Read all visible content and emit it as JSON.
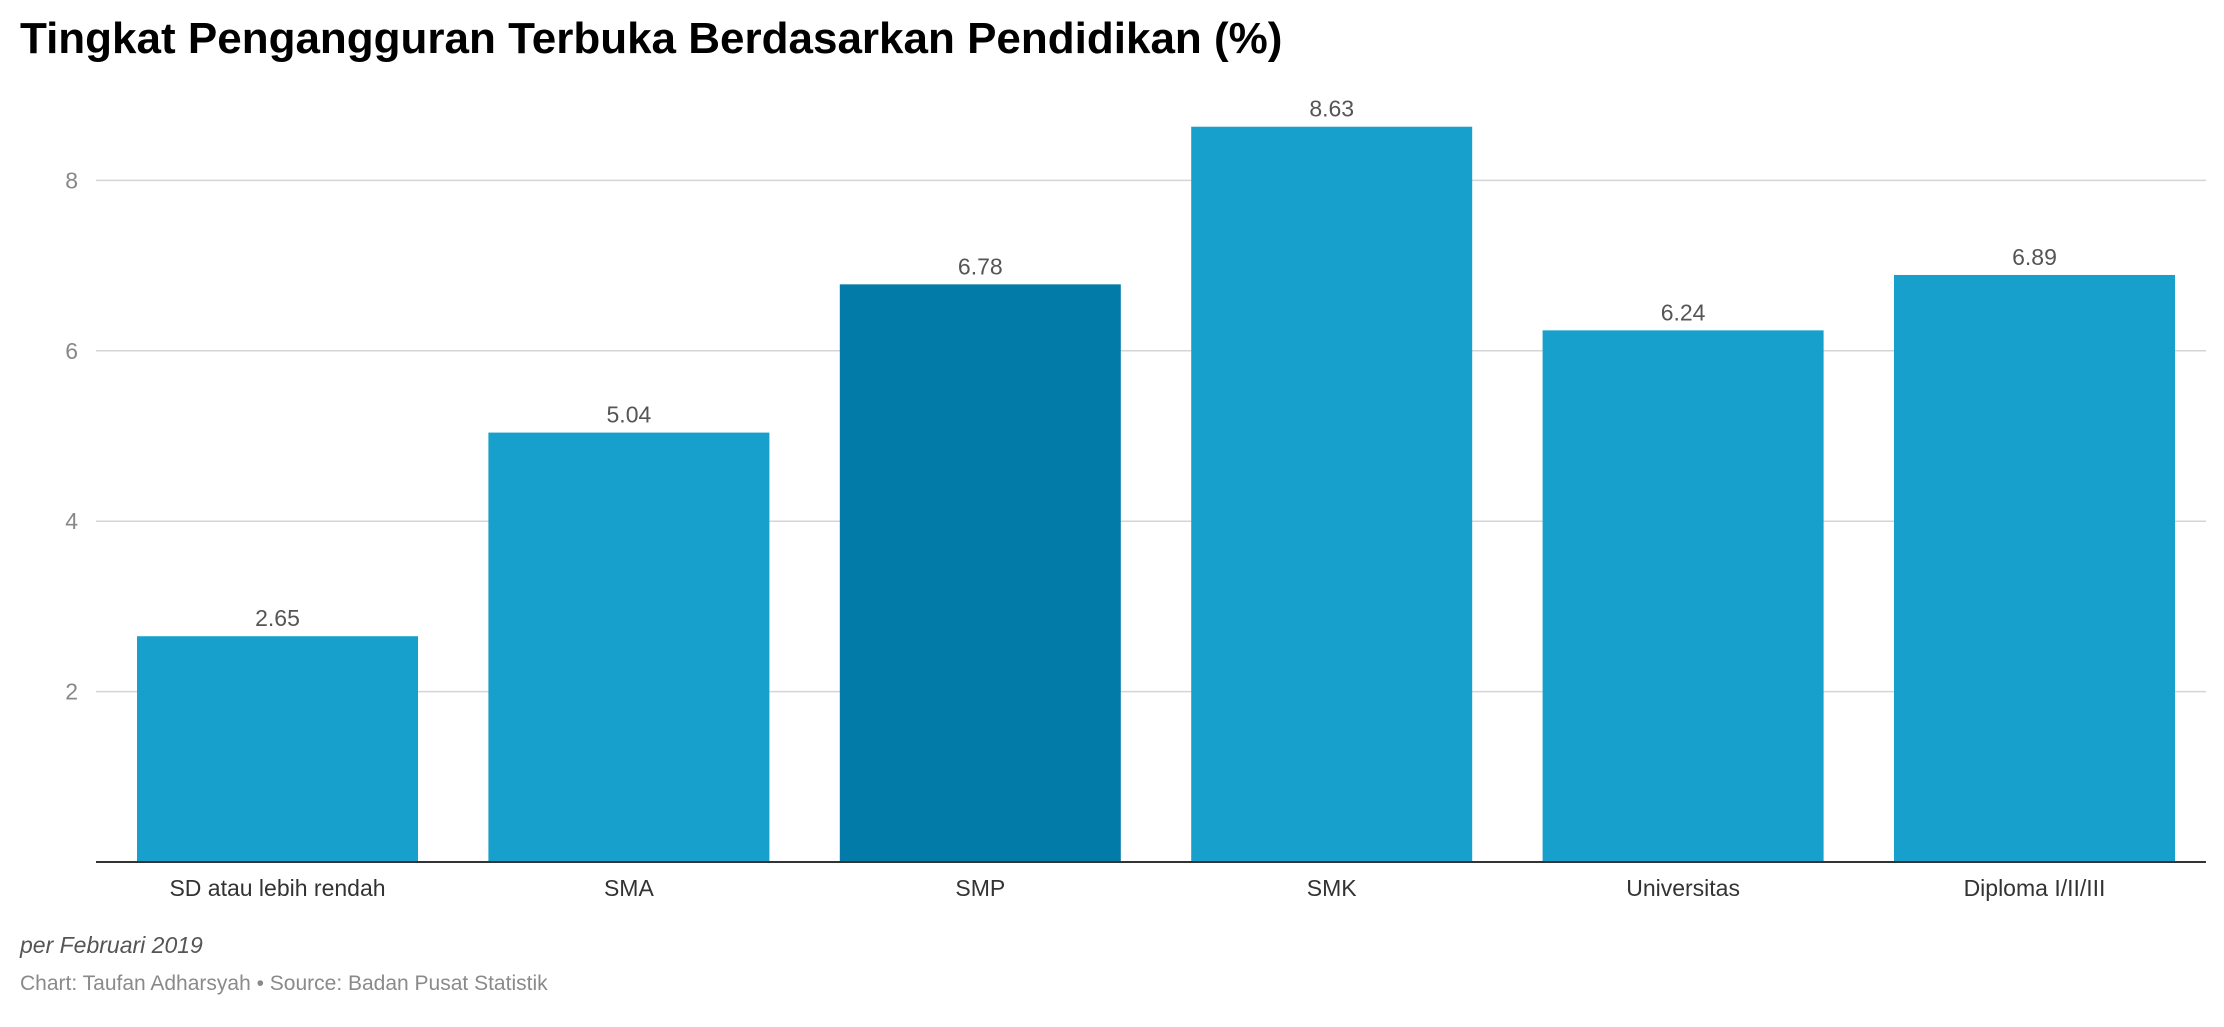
{
  "chart_data": {
    "type": "bar",
    "title": "Tingkat Pengangguran Terbuka Berdasarkan Pendidikan (%)",
    "categories": [
      "SD atau lebih rendah",
      "SMA",
      "SMP",
      "SMK",
      "Universitas",
      "Diploma I/II/III"
    ],
    "values": [
      2.65,
      5.04,
      6.78,
      8.63,
      6.24,
      6.89
    ],
    "data_labels": [
      "2.65",
      "5.04",
      "6.78",
      "8.63",
      "6.24",
      "6.89"
    ],
    "highlight_category": "SMP",
    "yticks": [
      2,
      4,
      6,
      8
    ],
    "ylim": [
      0,
      8.63
    ],
    "grid": true,
    "legend": "none",
    "xlabel": "",
    "ylabel": ""
  },
  "note": "per Februari 2019",
  "credit": "Chart: Taufan Adharsyah • Source: Badan Pusat Statistik",
  "colors": {
    "bar": "#18a0cc",
    "bar_highlight": "#037ba8",
    "grid": "#d4d4d4",
    "axis": "#333333"
  }
}
